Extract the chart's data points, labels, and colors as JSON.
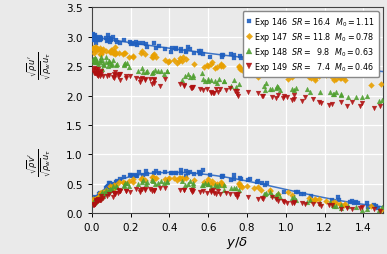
{
  "xlabel": "$y/\\delta$",
  "ylabel_top": "$\\frac{\\sqrt{\\rho}u^{\\prime}}{\\sqrt{\\rho_w}u_\\tau}$",
  "ylabel_bot": "$\\frac{\\sqrt{\\rho}v^{\\prime}}{\\sqrt{\\rho_w}u_\\tau}$",
  "xlim": [
    0,
    1.5
  ],
  "ylim": [
    0,
    3.5
  ],
  "xticks": [
    0,
    0.2,
    0.4,
    0.6,
    0.8,
    1.0,
    1.2,
    1.4
  ],
  "yticks": [
    0,
    0.5,
    1.0,
    1.5,
    2.0,
    2.5,
    3.0,
    3.5
  ],
  "series": [
    {
      "label": "Exp 146  $SR = 16.4$  $M_0 = 1.11$",
      "color": "#2060c0",
      "marker": "s",
      "markersize": 3.0,
      "line": true,
      "u_params": [
        3.05,
        3.0,
        0.55,
        1.5,
        0.15
      ],
      "v_params": [
        0.63,
        0.45,
        0.55,
        0.15,
        1.8
      ]
    },
    {
      "label": "Exp 147  $SR = 11.8$  $M_0 = 0.78$",
      "color": "#e8a000",
      "marker": "D",
      "markersize": 3.0,
      "line": false,
      "u_params": [
        3.45,
        2.8,
        0.65,
        1.4,
        0.22
      ],
      "v_params": [
        0.54,
        0.42,
        0.55,
        0.15,
        2.2
      ]
    },
    {
      "label": "Exp 148  $SR =\\;\\; 9.8$  $M_0 = 0.63$",
      "color": "#50a030",
      "marker": "^",
      "markersize": 3.5,
      "line": false,
      "u_params": [
        2.65,
        2.6,
        0.65,
        1.35,
        0.25
      ],
      "v_params": [
        0.48,
        0.4,
        0.55,
        0.15,
        2.5
      ]
    },
    {
      "label": "Exp 149  $SR =\\;\\; 7.4$  $M_0 = 0.46$",
      "color": "#b01010",
      "marker": "v",
      "markersize": 3.5,
      "line": false,
      "u_params": [
        3.0,
        2.4,
        0.7,
        1.3,
        0.35
      ],
      "v_params": [
        0.38,
        0.38,
        0.55,
        0.12,
        3.0
      ]
    }
  ],
  "background_color": "#eaeaea",
  "grid_color": "#ffffff"
}
